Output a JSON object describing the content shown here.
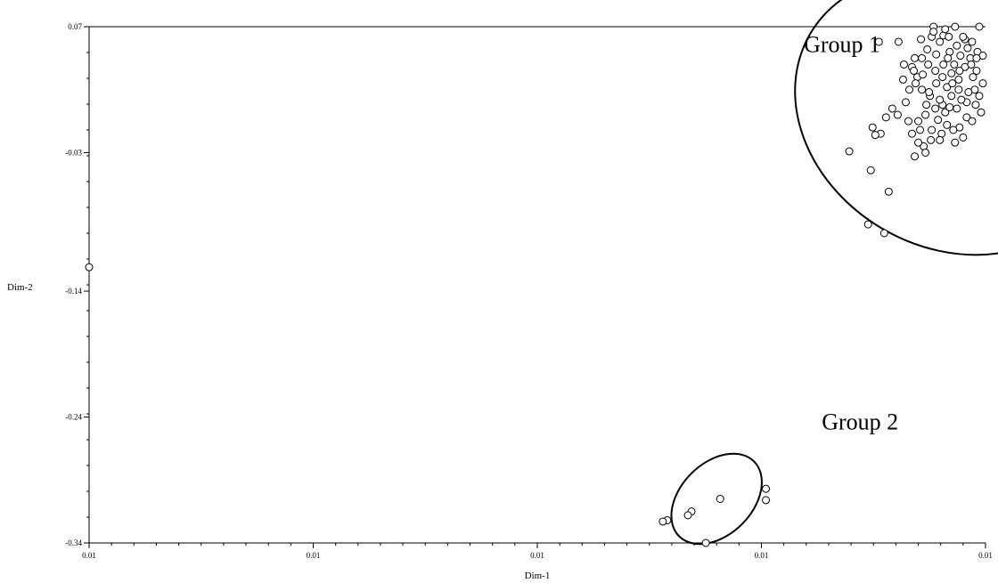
{
  "chart_data": {
    "type": "scatter",
    "xlabel": "Dim-1",
    "ylabel": "Dim-2",
    "x_tick_labels": [
      "0.01",
      "0.01",
      "0.01",
      "0.01",
      "0.01"
    ],
    "y_ticks": [
      0.07,
      -0.03,
      -0.14,
      -0.24,
      -0.34
    ],
    "y_tick_labels": [
      "0.07",
      "-0.03",
      "-0.14",
      "-0.24",
      "-0.34"
    ],
    "xlim": [
      0,
      1
    ],
    "ylim": [
      -0.34,
      0.07
    ],
    "grid": false,
    "annotations": [
      {
        "text": "Group 1",
        "x": 0.84,
        "y": 0.05,
        "ellipse": {
          "cx": 0.96,
          "cy": 0.0,
          "rx": 0.18,
          "ry": 0.105,
          "rotation": 30
        }
      },
      {
        "text": "Group 2",
        "x": 0.86,
        "y": -0.25,
        "ellipse": {
          "cx": 0.7,
          "cy": -0.305,
          "rx": 0.04,
          "ry": 0.042,
          "rotation": 45
        }
      }
    ],
    "series": [
      {
        "points": [
          {
            "x": 0.0,
            "y": -0.121
          },
          {
            "x": 0.881,
            "y": 0.058
          },
          {
            "x": 0.903,
            "y": 0.058
          },
          {
            "x": 0.942,
            "y": 0.07
          },
          {
            "x": 0.966,
            "y": 0.07
          },
          {
            "x": 0.993,
            "y": 0.07
          },
          {
            "x": 0.953,
            "y": 0.063
          },
          {
            "x": 0.959,
            "y": 0.062
          },
          {
            "x": 0.977,
            "y": 0.06
          },
          {
            "x": 0.985,
            "y": 0.058
          },
          {
            "x": 0.991,
            "y": 0.05
          },
          {
            "x": 0.997,
            "y": 0.047
          },
          {
            "x": 0.99,
            "y": 0.035
          },
          {
            "x": 0.997,
            "y": 0.025
          },
          {
            "x": 0.988,
            "y": 0.02
          },
          {
            "x": 0.993,
            "y": 0.015
          },
          {
            "x": 0.979,
            "y": 0.01
          },
          {
            "x": 0.968,
            "y": 0.005
          },
          {
            "x": 0.979,
            "y": -0.002
          },
          {
            "x": 0.971,
            "y": -0.01
          },
          {
            "x": 0.964,
            "y": -0.012
          },
          {
            "x": 0.951,
            "y": -0.015
          },
          {
            "x": 0.94,
            "y": -0.012
          },
          {
            "x": 0.927,
            "y": -0.012
          },
          {
            "x": 0.918,
            "y": -0.015
          },
          {
            "x": 0.925,
            "y": -0.005
          },
          {
            "x": 0.933,
            "y": 0.0
          },
          {
            "x": 0.944,
            "y": 0.005
          },
          {
            "x": 0.952,
            "y": 0.008
          },
          {
            "x": 0.938,
            "y": 0.015
          },
          {
            "x": 0.929,
            "y": 0.02
          },
          {
            "x": 0.924,
            "y": 0.03
          },
          {
            "x": 0.918,
            "y": 0.038
          },
          {
            "x": 0.929,
            "y": 0.045
          },
          {
            "x": 0.935,
            "y": 0.052
          },
          {
            "x": 0.945,
            "y": 0.048
          },
          {
            "x": 0.953,
            "y": 0.04
          },
          {
            "x": 0.962,
            "y": 0.033
          },
          {
            "x": 0.97,
            "y": 0.028
          },
          {
            "x": 0.977,
            "y": 0.038
          },
          {
            "x": 0.983,
            "y": 0.045
          },
          {
            "x": 0.957,
            "y": 0.022
          },
          {
            "x": 0.945,
            "y": 0.025
          },
          {
            "x": 0.911,
            "y": 0.01
          },
          {
            "x": 0.902,
            "y": 0.0
          },
          {
            "x": 0.914,
            "y": -0.005
          },
          {
            "x": 0.874,
            "y": -0.01
          },
          {
            "x": 0.889,
            "y": -0.002
          },
          {
            "x": 0.896,
            "y": 0.005
          },
          {
            "x": 0.96,
            "y": 0.05
          },
          {
            "x": 0.968,
            "y": 0.055
          },
          {
            "x": 0.975,
            "y": 0.062
          },
          {
            "x": 0.986,
            "y": 0.03
          },
          {
            "x": 0.981,
            "y": 0.018
          },
          {
            "x": 0.973,
            "y": 0.012
          },
          {
            "x": 0.962,
            "y": 0.015
          },
          {
            "x": 0.955,
            "y": 0.002
          },
          {
            "x": 0.947,
            "y": -0.004
          },
          {
            "x": 0.939,
            "y": -0.02
          },
          {
            "x": 0.931,
            "y": -0.025
          },
          {
            "x": 0.925,
            "y": -0.022
          },
          {
            "x": 0.944,
            "y": 0.035
          },
          {
            "x": 0.936,
            "y": 0.04
          },
          {
            "x": 0.93,
            "y": 0.032
          },
          {
            "x": 0.922,
            "y": 0.025
          },
          {
            "x": 0.915,
            "y": 0.02
          },
          {
            "x": 0.908,
            "y": 0.028
          },
          {
            "x": 0.921,
            "y": 0.045
          },
          {
            "x": 0.928,
            "y": 0.06
          },
          {
            "x": 0.94,
            "y": 0.062
          },
          {
            "x": 0.949,
            "y": 0.058
          },
          {
            "x": 0.958,
            "y": 0.045
          },
          {
            "x": 0.965,
            "y": 0.04
          },
          {
            "x": 0.972,
            "y": 0.047
          },
          {
            "x": 0.98,
            "y": 0.053
          },
          {
            "x": 0.989,
            "y": 0.008
          },
          {
            "x": 0.995,
            "y": 0.002
          },
          {
            "x": 0.985,
            "y": -0.005
          },
          {
            "x": 0.975,
            "y": -0.018
          },
          {
            "x": 0.966,
            "y": -0.022
          },
          {
            "x": 0.957,
            "y": -0.008
          },
          {
            "x": 0.949,
            "y": -0.02
          },
          {
            "x": 0.933,
            "y": -0.03
          },
          {
            "x": 0.921,
            "y": -0.033
          },
          {
            "x": 0.937,
            "y": 0.018
          },
          {
            "x": 0.949,
            "y": 0.012
          },
          {
            "x": 0.96,
            "y": 0.006
          },
          {
            "x": 0.952,
            "y": 0.03
          },
          {
            "x": 0.963,
            "y": 0.025
          },
          {
            "x": 0.971,
            "y": 0.035
          },
          {
            "x": 0.984,
            "y": 0.04
          },
          {
            "x": 0.99,
            "y": 0.045
          },
          {
            "x": 0.934,
            "y": 0.008
          },
          {
            "x": 0.92,
            "y": 0.035
          },
          {
            "x": 0.909,
            "y": 0.04
          },
          {
            "x": 0.942,
            "y": 0.066
          },
          {
            "x": 0.955,
            "y": 0.068
          },
          {
            "x": 0.97,
            "y": 0.02
          },
          {
            "x": 0.883,
            "y": -0.015
          },
          {
            "x": 0.877,
            "y": -0.016
          },
          {
            "x": 0.848,
            "y": -0.029
          },
          {
            "x": 0.872,
            "y": -0.044
          },
          {
            "x": 0.892,
            "y": -0.061
          },
          {
            "x": 0.869,
            "y": -0.087
          },
          {
            "x": 0.887,
            "y": -0.094
          },
          {
            "x": 0.755,
            "y": -0.297
          },
          {
            "x": 0.755,
            "y": -0.306
          },
          {
            "x": 0.704,
            "y": -0.305
          },
          {
            "x": 0.672,
            "y": -0.315
          },
          {
            "x": 0.668,
            "y": -0.318
          },
          {
            "x": 0.645,
            "y": -0.322
          },
          {
            "x": 0.64,
            "y": -0.323
          },
          {
            "x": 0.688,
            "y": -0.34
          }
        ]
      }
    ]
  }
}
